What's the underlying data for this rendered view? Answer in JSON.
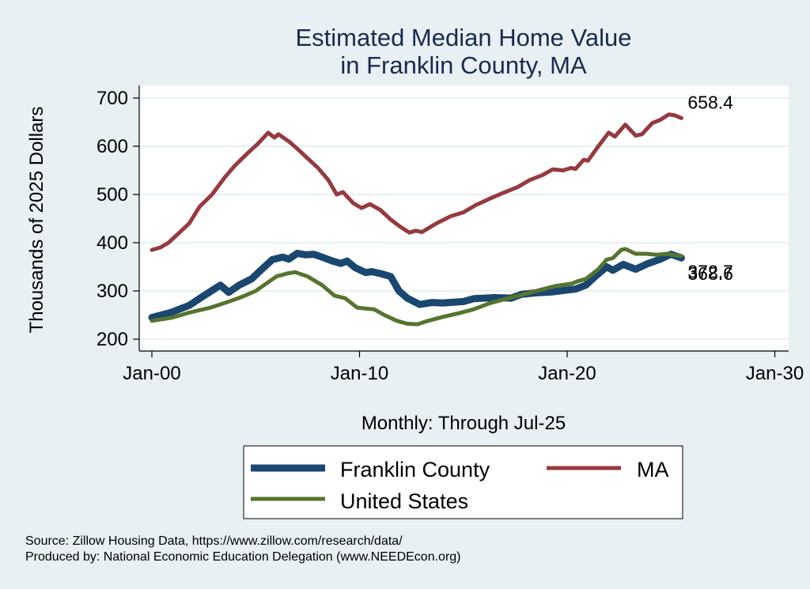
{
  "chart_data": {
    "type": "line",
    "title": [
      "Estimated Median Home Value",
      "in Franklin County, MA"
    ],
    "xlabel": "Monthly: Through Jul-25",
    "ylabel": "Thousands of 2025 Dollars",
    "xlim": [
      2000,
      2030
    ],
    "ylim": [
      200,
      700
    ],
    "x_ticks": [
      {
        "value": 2000,
        "label": "Jan-00"
      },
      {
        "value": 2010,
        "label": "Jan-10"
      },
      {
        "value": 2020,
        "label": "Jan-20"
      },
      {
        "value": 2030,
        "label": "Jan-30"
      }
    ],
    "y_ticks": [
      200,
      300,
      400,
      500,
      600,
      700
    ],
    "grid": true,
    "legend": {
      "placement": "bottom",
      "entries": [
        "Franklin County",
        "MA",
        "United States"
      ]
    },
    "series": [
      {
        "name": "MA",
        "color": "#953a40",
        "end_label": "658.4",
        "points": [
          [
            2000.0,
            385
          ],
          [
            2000.4,
            390
          ],
          [
            2000.8,
            400
          ],
          [
            2001.3,
            420
          ],
          [
            2001.8,
            440
          ],
          [
            2002.3,
            475
          ],
          [
            2002.9,
            500
          ],
          [
            2003.5,
            535
          ],
          [
            2004.0,
            560
          ],
          [
            2004.6,
            585
          ],
          [
            2005.1,
            605
          ],
          [
            2005.6,
            628
          ],
          [
            2005.9,
            618
          ],
          [
            2006.1,
            625
          ],
          [
            2006.6,
            610
          ],
          [
            2007.0,
            595
          ],
          [
            2007.5,
            575
          ],
          [
            2008.0,
            555
          ],
          [
            2008.5,
            530
          ],
          [
            2008.9,
            500
          ],
          [
            2009.2,
            505
          ],
          [
            2009.7,
            482
          ],
          [
            2010.1,
            472
          ],
          [
            2010.5,
            480
          ],
          [
            2011.0,
            468
          ],
          [
            2011.5,
            448
          ],
          [
            2012.0,
            432
          ],
          [
            2012.4,
            421
          ],
          [
            2012.7,
            425
          ],
          [
            2013.0,
            422
          ],
          [
            2013.7,
            440
          ],
          [
            2014.4,
            455
          ],
          [
            2015.0,
            463
          ],
          [
            2015.6,
            478
          ],
          [
            2016.2,
            490
          ],
          [
            2016.9,
            503
          ],
          [
            2017.6,
            515
          ],
          [
            2018.2,
            530
          ],
          [
            2018.8,
            540
          ],
          [
            2019.3,
            552
          ],
          [
            2019.8,
            550
          ],
          [
            2020.2,
            555
          ],
          [
            2020.4,
            553
          ],
          [
            2020.8,
            572
          ],
          [
            2021.0,
            570
          ],
          [
            2021.5,
            600
          ],
          [
            2022.0,
            628
          ],
          [
            2022.3,
            620
          ],
          [
            2022.8,
            645
          ],
          [
            2023.3,
            622
          ],
          [
            2023.6,
            625
          ],
          [
            2024.1,
            648
          ],
          [
            2024.5,
            655
          ],
          [
            2024.9,
            666
          ],
          [
            2025.2,
            664
          ],
          [
            2025.5,
            658.4
          ]
        ]
      },
      {
        "name": "Franklin County",
        "color": "#1a476f",
        "end_label": "368.6",
        "points": [
          [
            2000.0,
            245
          ],
          [
            2000.9,
            255
          ],
          [
            2001.8,
            270
          ],
          [
            2002.5,
            290
          ],
          [
            2003.3,
            312
          ],
          [
            2003.7,
            297
          ],
          [
            2004.2,
            312
          ],
          [
            2004.8,
            325
          ],
          [
            2005.3,
            345
          ],
          [
            2005.8,
            365
          ],
          [
            2006.3,
            370
          ],
          [
            2006.6,
            366
          ],
          [
            2007.0,
            378
          ],
          [
            2007.4,
            375
          ],
          [
            2007.8,
            376
          ],
          [
            2008.2,
            370
          ],
          [
            2008.7,
            362
          ],
          [
            2009.1,
            357
          ],
          [
            2009.4,
            362
          ],
          [
            2009.8,
            348
          ],
          [
            2010.3,
            338
          ],
          [
            2010.6,
            340
          ],
          [
            2011.0,
            336
          ],
          [
            2011.5,
            330
          ],
          [
            2011.9,
            300
          ],
          [
            2012.3,
            285
          ],
          [
            2012.9,
            272
          ],
          [
            2013.5,
            276
          ],
          [
            2014.0,
            275
          ],
          [
            2015.0,
            278
          ],
          [
            2015.5,
            284
          ],
          [
            2016.5,
            286
          ],
          [
            2017.3,
            285
          ],
          [
            2017.8,
            293
          ],
          [
            2018.5,
            296
          ],
          [
            2019.3,
            298
          ],
          [
            2020.0,
            302
          ],
          [
            2020.4,
            304
          ],
          [
            2020.9,
            312
          ],
          [
            2021.4,
            332
          ],
          [
            2021.9,
            350
          ],
          [
            2022.2,
            343
          ],
          [
            2022.7,
            355
          ],
          [
            2023.3,
            345
          ],
          [
            2023.9,
            357
          ],
          [
            2024.5,
            366
          ],
          [
            2025.0,
            376
          ],
          [
            2025.5,
            368.6
          ]
        ]
      },
      {
        "name": "United States",
        "color": "#55752f",
        "end_label": "372.7",
        "points": [
          [
            2000.0,
            238
          ],
          [
            2001.0,
            245
          ],
          [
            2001.8,
            255
          ],
          [
            2002.8,
            265
          ],
          [
            2003.5,
            275
          ],
          [
            2004.3,
            287
          ],
          [
            2005.0,
            300
          ],
          [
            2005.6,
            318
          ],
          [
            2006.0,
            330
          ],
          [
            2006.5,
            336
          ],
          [
            2006.9,
            339
          ],
          [
            2007.5,
            330
          ],
          [
            2008.2,
            312
          ],
          [
            2008.8,
            290
          ],
          [
            2009.3,
            285
          ],
          [
            2009.9,
            265
          ],
          [
            2010.7,
            262
          ],
          [
            2011.2,
            250
          ],
          [
            2011.8,
            238
          ],
          [
            2012.3,
            232
          ],
          [
            2012.8,
            231
          ],
          [
            2013.3,
            238
          ],
          [
            2014.0,
            246
          ],
          [
            2014.8,
            254
          ],
          [
            2015.5,
            262
          ],
          [
            2016.3,
            275
          ],
          [
            2017.0,
            283
          ],
          [
            2017.8,
            292
          ],
          [
            2018.6,
            301
          ],
          [
            2019.4,
            310
          ],
          [
            2020.2,
            315
          ],
          [
            2020.5,
            320
          ],
          [
            2020.9,
            325
          ],
          [
            2021.5,
            345
          ],
          [
            2021.9,
            365
          ],
          [
            2022.2,
            368
          ],
          [
            2022.6,
            385
          ],
          [
            2022.8,
            387
          ],
          [
            2023.3,
            377
          ],
          [
            2023.8,
            377
          ],
          [
            2024.3,
            375
          ],
          [
            2024.8,
            377
          ],
          [
            2025.2,
            374
          ],
          [
            2025.5,
            372.7
          ]
        ]
      }
    ]
  },
  "notes": [
    "Source: Zillow Housing Data, https://www.zillow.com/research/data/",
    "Produced by: National Economic Education Delegation (www.NEEDEcon.org)"
  ]
}
